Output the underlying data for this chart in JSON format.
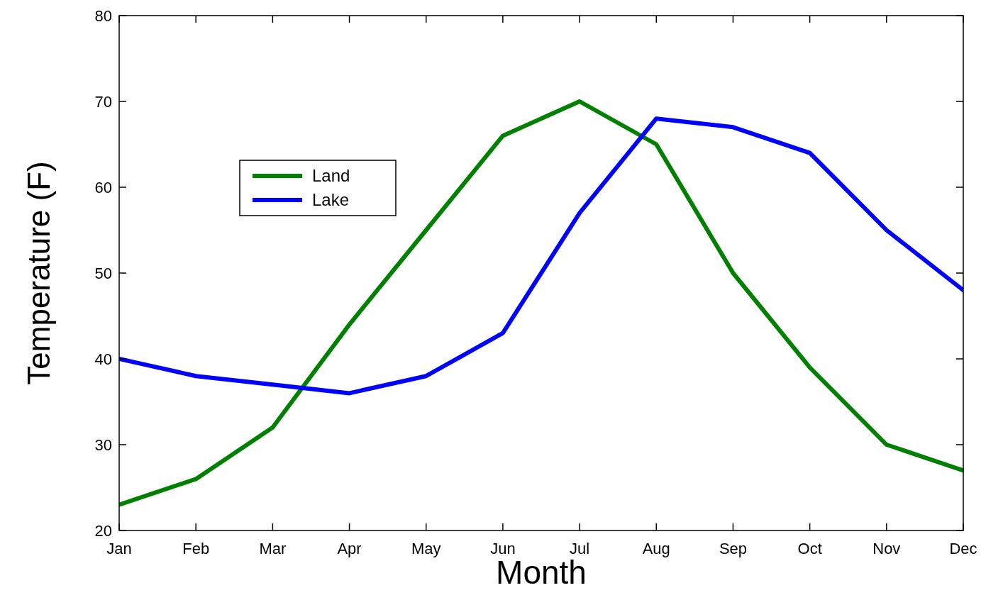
{
  "chart_data": {
    "type": "line",
    "xlabel": "Month",
    "ylabel": "Temperature (F)",
    "categories": [
      "Jan",
      "Feb",
      "Mar",
      "Apr",
      "May",
      "Jun",
      "Jul",
      "Aug",
      "Sep",
      "Oct",
      "Nov",
      "Dec"
    ],
    "series": [
      {
        "name": "Land",
        "color": "#008000",
        "values": [
          23,
          26,
          32,
          44,
          55,
          66,
          70,
          65,
          50,
          39,
          30,
          27
        ]
      },
      {
        "name": "Lake",
        "color": "#0000ff",
        "values": [
          40,
          38,
          37,
          36,
          38,
          43,
          57,
          68,
          67,
          64,
          55,
          48
        ]
      }
    ],
    "ylim": [
      20,
      80
    ],
    "yticks": [
      20,
      30,
      40,
      50,
      60,
      70,
      80
    ],
    "grid": false,
    "legend": "top left",
    "marker": "none",
    "line_style": "solid"
  }
}
